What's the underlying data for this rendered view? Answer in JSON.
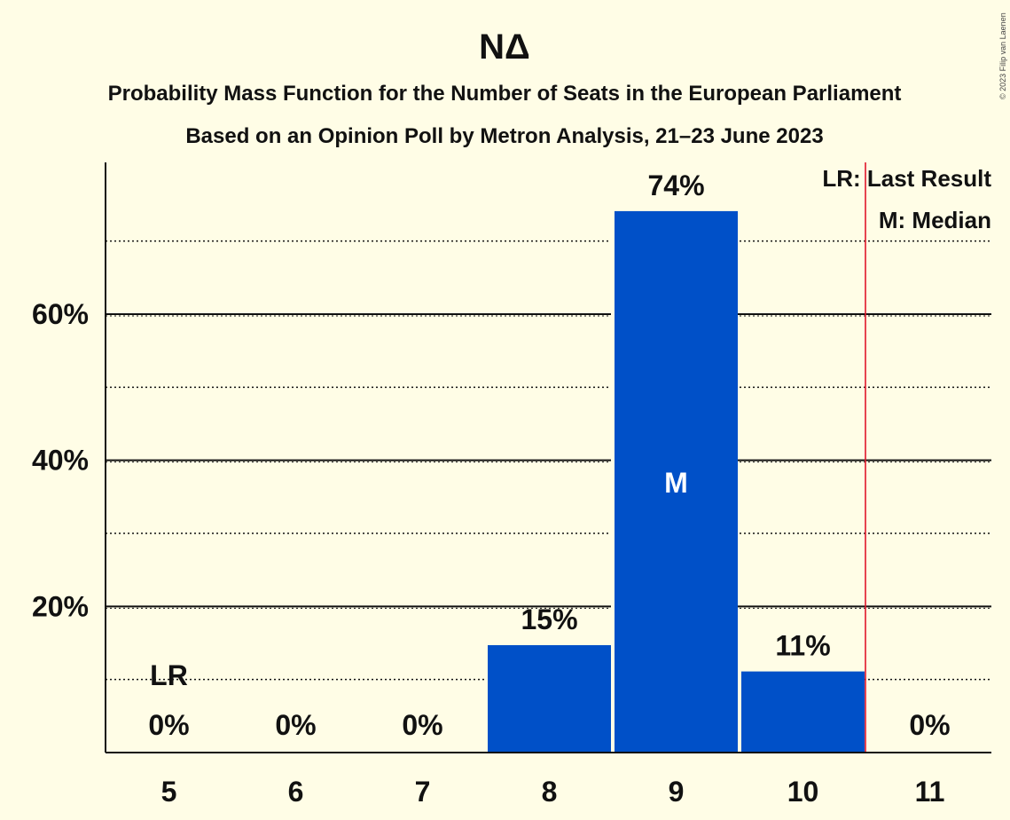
{
  "colors": {
    "background": "#FFFDE6",
    "bar": "#0050C8",
    "last_result_line": "#E0162B",
    "text": "#111111"
  },
  "chart_data": {
    "type": "bar",
    "title": "ΝΔ",
    "subtitle": "Probability Mass Function for the Number of Seats in the European Parliament",
    "subtitle2": "Based on an Opinion Poll by Metron Analysis, 21–23 June 2023",
    "copyright": "© 2023 Filip van Laenen",
    "categories": [
      "5",
      "6",
      "7",
      "8",
      "9",
      "10",
      "11"
    ],
    "values": [
      0,
      0,
      0,
      14.7,
      74.1,
      11.1,
      0
    ],
    "data_labels": [
      "0%",
      "0%",
      "0%",
      "15%",
      "74%",
      "11%",
      "0%"
    ],
    "ylim": [
      0,
      80
    ],
    "yticks": [
      {
        "value": 20,
        "label": "20%"
      },
      {
        "value": 40,
        "label": "40%"
      },
      {
        "value": 60,
        "label": "60%"
      }
    ],
    "minor_gridlines": [
      10,
      30,
      50,
      70
    ],
    "median": {
      "seats": "9",
      "label": "M"
    },
    "last_result": {
      "seats": "5",
      "label": "LR",
      "line_after": "10"
    },
    "legend": {
      "placement": "top-right",
      "items": [
        "LR: Last Result",
        "M: Median"
      ]
    }
  }
}
